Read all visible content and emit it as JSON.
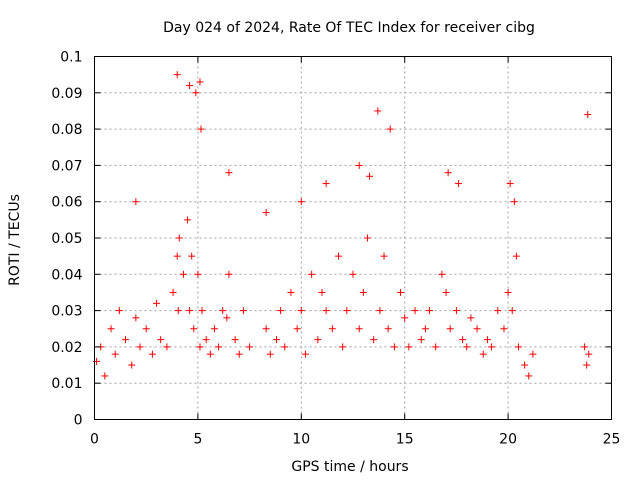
{
  "chart_data": {
    "type": "scatter",
    "title": "Day 024 of 2024, Rate Of TEC Index for receiver cibg",
    "xlabel": "GPS time / hours",
    "ylabel": "ROTI / TECUs",
    "xlim": [
      0,
      25
    ],
    "ylim": [
      0,
      0.1
    ],
    "x_ticks": [
      "0",
      "5",
      "10",
      "15",
      "20",
      "25"
    ],
    "x_tick_values": [
      0,
      5,
      10,
      15,
      20,
      25
    ],
    "y_ticks": [
      "0",
      "0.01",
      "0.02",
      "0.03",
      "0.04",
      "0.05",
      "0.06",
      "0.07",
      "0.08",
      "0.09",
      "0.1"
    ],
    "y_tick_values": [
      0,
      0.01,
      0.02,
      0.03,
      0.04,
      0.05,
      0.06,
      0.07,
      0.08,
      0.09,
      0.1
    ],
    "grid": true,
    "marker": "plus",
    "color": "#ff0000",
    "series": [
      {
        "x": [
          0.1,
          0.3,
          0.5,
          0.8,
          1.0,
          1.2,
          1.5,
          1.8,
          2.0,
          2.2,
          2.5,
          2.8,
          3.0,
          3.2,
          3.5,
          3.8,
          4.0,
          4.05,
          4.1,
          4.3,
          4.5,
          4.6,
          4.7,
          4.8,
          5.0,
          5.1,
          5.2,
          5.4,
          5.6,
          5.8,
          6.0,
          6.2,
          6.4,
          6.5,
          6.8,
          7.0,
          7.2,
          7.5,
          8.3,
          8.5,
          8.8,
          9.0,
          9.2,
          9.5,
          9.8,
          10.0,
          10.2,
          10.5,
          10.8,
          11.0,
          11.2,
          11.5,
          11.8,
          12.0,
          12.2,
          12.5,
          12.8,
          13.0,
          13.2,
          13.5,
          13.8,
          14.0,
          14.2,
          14.5,
          14.8,
          15.0,
          15.2,
          15.5,
          15.8,
          16.0,
          16.2,
          16.5,
          16.8,
          17.0,
          17.2,
          17.5,
          17.8,
          18.0,
          18.2,
          18.5,
          18.8,
          19.0,
          19.2,
          19.5,
          19.8,
          20.0,
          20.2,
          20.4,
          20.5,
          20.8,
          21.0,
          21.2,
          23.7,
          23.8,
          23.9,
          4.0,
          4.6,
          4.9,
          5.1,
          5.15,
          13.7,
          14.3,
          23.85,
          10.0,
          11.2,
          12.8,
          13.3,
          17.1,
          17.6,
          20.1,
          20.3,
          2.0,
          6.5,
          8.3
        ],
        "y": [
          0.016,
          0.02,
          0.012,
          0.025,
          0.018,
          0.03,
          0.022,
          0.015,
          0.028,
          0.02,
          0.025,
          0.018,
          0.032,
          0.022,
          0.02,
          0.035,
          0.045,
          0.03,
          0.05,
          0.04,
          0.055,
          0.03,
          0.045,
          0.025,
          0.04,
          0.02,
          0.03,
          0.022,
          0.018,
          0.025,
          0.02,
          0.03,
          0.028,
          0.04,
          0.022,
          0.018,
          0.03,
          0.02,
          0.025,
          0.018,
          0.022,
          0.03,
          0.02,
          0.035,
          0.025,
          0.03,
          0.018,
          0.04,
          0.022,
          0.035,
          0.03,
          0.025,
          0.045,
          0.02,
          0.03,
          0.04,
          0.025,
          0.035,
          0.05,
          0.022,
          0.03,
          0.045,
          0.025,
          0.02,
          0.035,
          0.028,
          0.02,
          0.03,
          0.022,
          0.025,
          0.03,
          0.02,
          0.04,
          0.035,
          0.025,
          0.03,
          0.022,
          0.02,
          0.028,
          0.025,
          0.018,
          0.022,
          0.02,
          0.03,
          0.025,
          0.035,
          0.03,
          0.045,
          0.02,
          0.015,
          0.012,
          0.018,
          0.02,
          0.015,
          0.018,
          0.095,
          0.092,
          0.09,
          0.093,
          0.08,
          0.085,
          0.08,
          0.084,
          0.06,
          0.065,
          0.07,
          0.067,
          0.068,
          0.065,
          0.065,
          0.06,
          0.06,
          0.068,
          0.057
        ]
      }
    ]
  }
}
